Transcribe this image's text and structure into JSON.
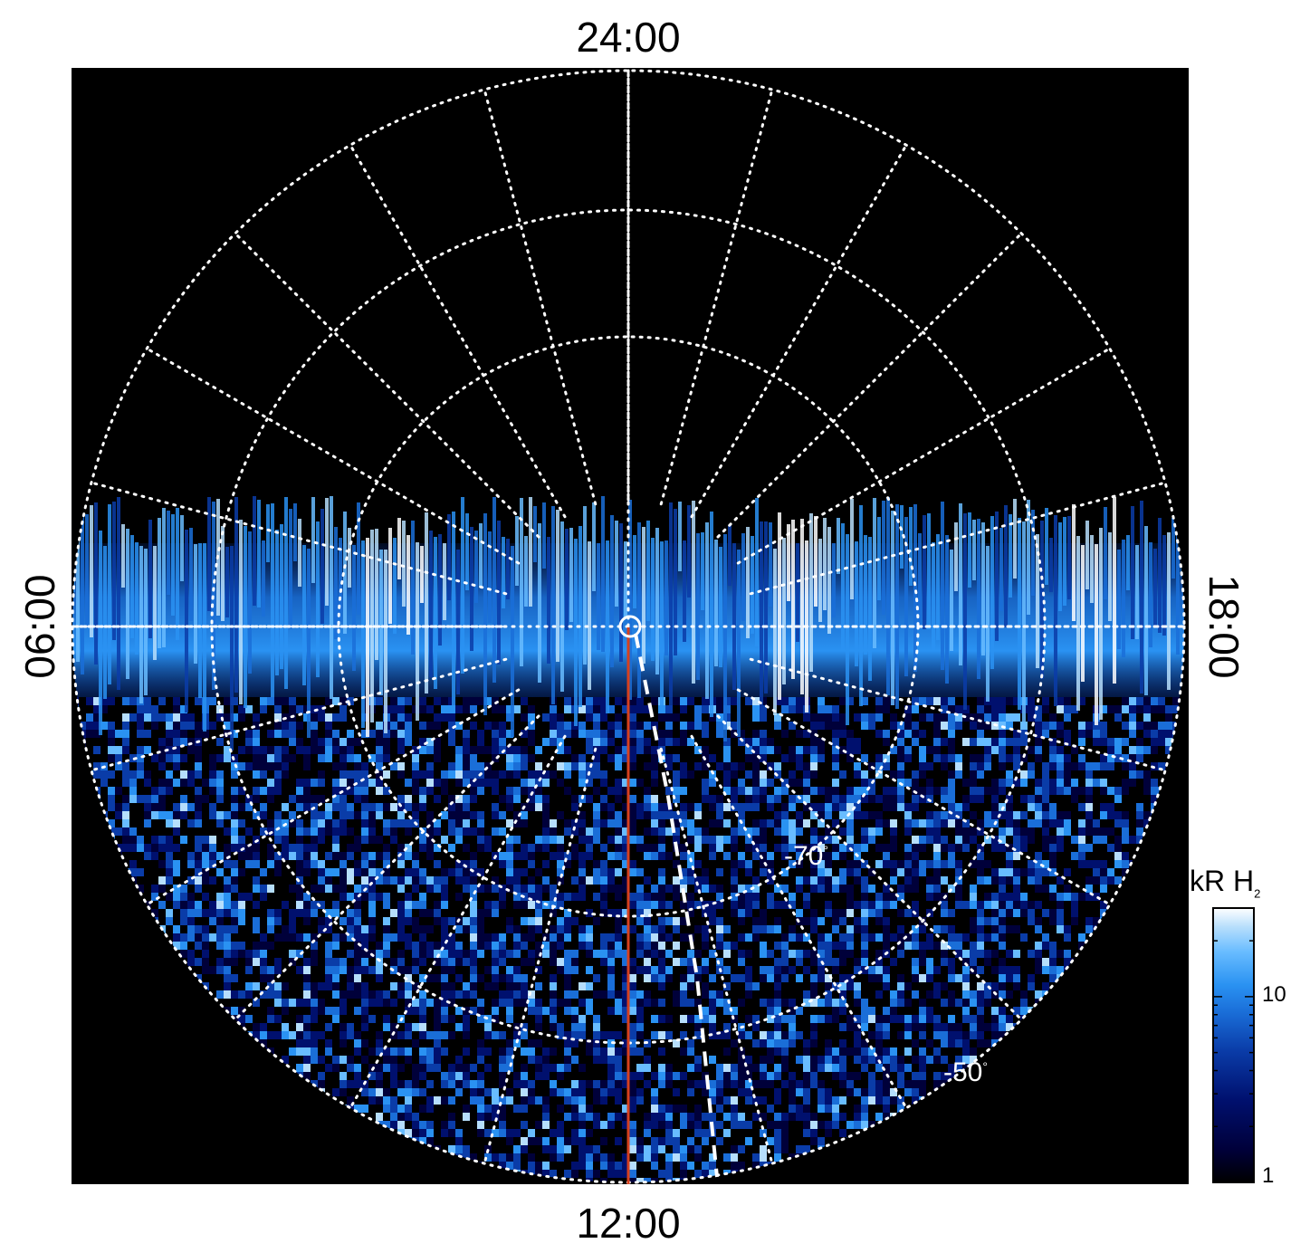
{
  "local_time_labels": {
    "top": "24:00",
    "bottom": "12:00",
    "left": "06:00",
    "right": "18:00"
  },
  "latitude_labels": [
    {
      "value": "-70",
      "unit": "°"
    },
    {
      "value": "-50",
      "unit": "°"
    }
  ],
  "colorbar": {
    "unit": "kR H",
    "unit_subscript": "2",
    "tick_labels": [
      "10",
      "1"
    ],
    "scale": "log",
    "range": [
      1,
      30
    ]
  },
  "colors": {
    "background": "#000000",
    "grid": "#ffffff",
    "meridian": "#d7401e",
    "colormap": [
      "#000000",
      "#00003a",
      "#00106e",
      "#0a3ca8",
      "#1a6ed8",
      "#2a92f2",
      "#68bcff",
      "#b6defc",
      "#ffffff"
    ]
  }
}
